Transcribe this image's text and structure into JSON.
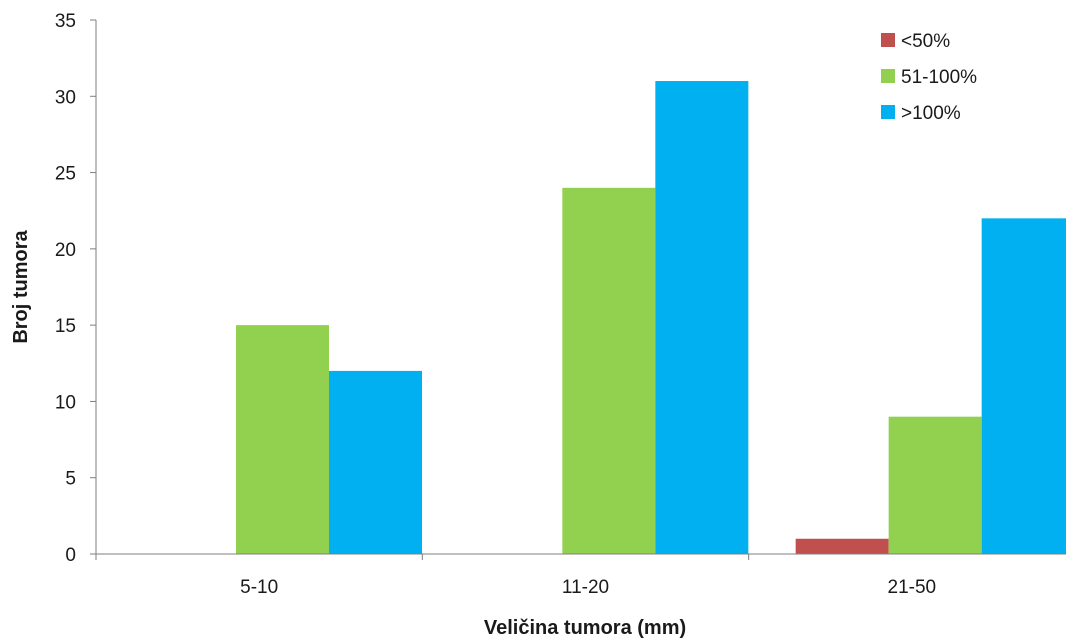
{
  "chart_data": {
    "type": "bar",
    "title": "",
    "xlabel": "Veličina tumora (mm)",
    "ylabel": "Broj tumora",
    "categories": [
      "5-10",
      "11-20",
      "21-50"
    ],
    "ylim": [
      0,
      35
    ],
    "yticks": [
      0,
      5,
      10,
      15,
      20,
      25,
      30,
      35
    ],
    "grid": false,
    "legend_position": "top-right",
    "series": [
      {
        "name": "<50%",
        "color": "#c0504d",
        "values": [
          0,
          0,
          1
        ]
      },
      {
        "name": "51-100%",
        "color": "#92d050",
        "values": [
          15,
          24,
          9
        ]
      },
      {
        "name": ">100%",
        "color": "#00b0f0",
        "values": [
          12,
          31,
          22
        ]
      }
    ]
  }
}
